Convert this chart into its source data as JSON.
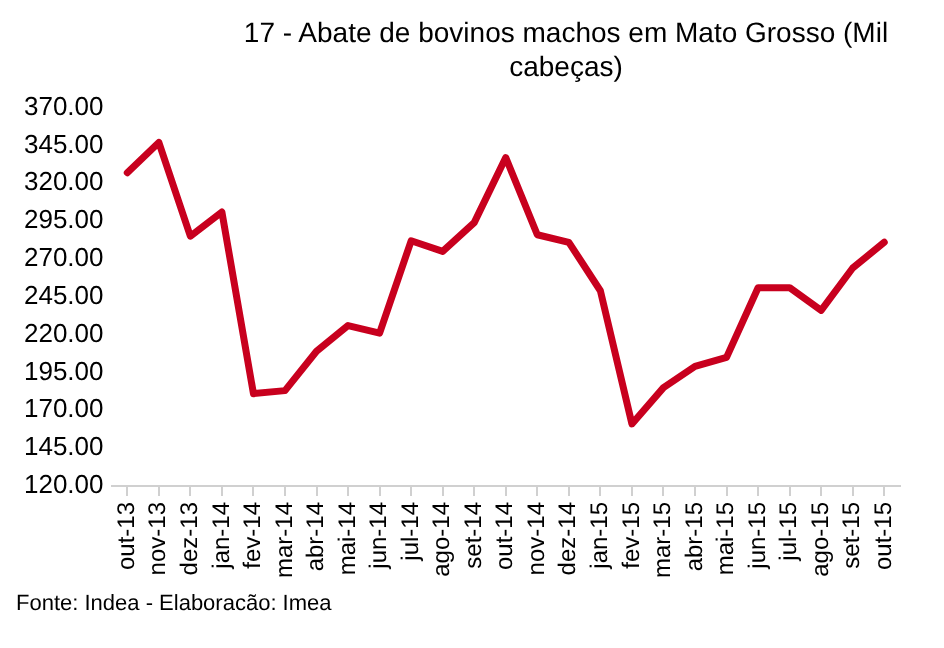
{
  "chart_data": {
    "type": "line",
    "title": "17 - Abate de bovinos machos em Mato Grosso (Mil cabeças)",
    "categories": [
      "out-13",
      "nov-13",
      "dez-13",
      "jan-14",
      "fev-14",
      "mar-14",
      "abr-14",
      "mai-14",
      "jun-14",
      "jul-14",
      "ago-14",
      "set-14",
      "out-14",
      "nov-14",
      "dez-14",
      "jan-15",
      "fev-15",
      "mar-15",
      "abr-15",
      "mai-15",
      "jun-15",
      "jul-15",
      "ago-15",
      "set-15",
      "out-15"
    ],
    "series": [
      {
        "color": "#c8001e",
        "values": [
          327,
          347,
          285,
          301,
          181,
          183,
          209,
          226,
          221,
          282,
          275,
          294,
          337,
          286,
          281,
          249,
          161,
          185,
          199,
          205,
          251,
          251,
          236,
          264,
          281
        ]
      }
    ],
    "ylim": [
      120,
      370
    ],
    "yticks": [
      {
        "value": 120,
        "label": "120.00"
      },
      {
        "value": 145,
        "label": "145.00"
      },
      {
        "value": 170,
        "label": "170.00"
      },
      {
        "value": 195,
        "label": "195.00"
      },
      {
        "value": 220,
        "label": "220.00"
      },
      {
        "value": 245,
        "label": "245.00"
      },
      {
        "value": 270,
        "label": "270.00"
      },
      {
        "value": 295,
        "label": "295.00"
      },
      {
        "value": 320,
        "label": "320.00"
      },
      {
        "value": 345,
        "label": "345.00"
      },
      {
        "value": 370,
        "label": "370.00"
      }
    ],
    "grid": false,
    "legend": false,
    "marker": "none",
    "line_style": "solid",
    "annotations": [
      "Fonte: Indea - Elaboracão: Imea"
    ]
  }
}
